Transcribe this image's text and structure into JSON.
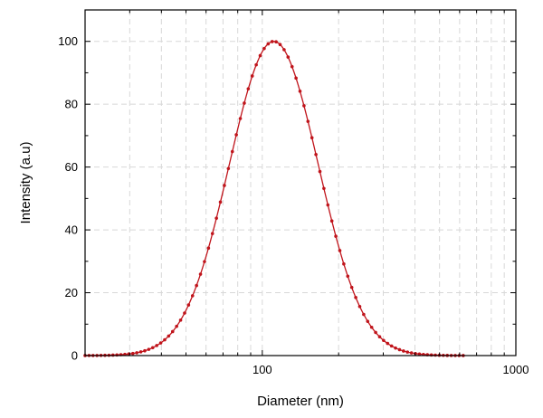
{
  "chart_data": {
    "type": "line",
    "title": "",
    "xlabel": "Diameter (nm)",
    "ylabel": "Intensity (a.u)",
    "x_scale": "log",
    "xlim": [
      20,
      1000
    ],
    "ylim": [
      0,
      110
    ],
    "x_ticks": [
      "100",
      "1000"
    ],
    "y_ticks": [
      "0",
      "20",
      "40",
      "60",
      "80",
      "100"
    ],
    "grid": true,
    "legend": "none",
    "series": [
      {
        "color": "#c0141b",
        "marker": "dot",
        "distribution": "lognormal",
        "peak_x": 111,
        "peak_y": 100,
        "x": [
          20,
          22,
          24,
          26,
          28,
          30,
          33,
          36,
          40,
          45,
          50,
          55,
          60,
          65,
          70,
          75,
          80,
          85,
          90,
          95,
          100,
          105,
          111,
          118,
          125,
          132,
          140,
          150,
          160,
          170,
          180,
          190,
          200,
          220,
          240,
          260,
          280,
          300,
          330,
          360,
          400,
          450,
          500,
          550,
          600
        ],
        "values": [
          0.1,
          0.2,
          0.4,
          0.7,
          1.2,
          1.8,
          3.2,
          5.2,
          8.8,
          15.1,
          22.8,
          31.3,
          40.2,
          49.0,
          57.4,
          65.2,
          72.2,
          78.5,
          84.0,
          88.6,
          92.4,
          95.5,
          98.9,
          99.3,
          97.2,
          94.1,
          89.2,
          81.9,
          74.0,
          66.0,
          58.2,
          50.9,
          44.2,
          32.7,
          23.6,
          16.9,
          12.0,
          8.4,
          4.8,
          2.7,
          1.2,
          0.5,
          0.2,
          0.1,
          0.0
        ]
      }
    ]
  }
}
